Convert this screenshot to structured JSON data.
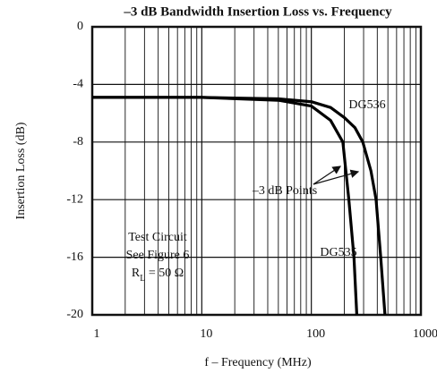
{
  "chart_data": {
    "type": "line",
    "title": "–3 dB Bandwidth Insertion Loss vs. Frequency",
    "x_label": "f – Frequency (MHz)",
    "y_label": "Insertion Loss (dB)",
    "xscale": "log",
    "xlim": [
      1,
      1000
    ],
    "xticks": [
      1,
      10,
      100,
      1000
    ],
    "ylim": [
      -20,
      0
    ],
    "yticks": [
      0,
      -4,
      -8,
      -12,
      -16,
      -20
    ],
    "grid": true,
    "series": [
      {
        "name": "DG536",
        "color": "#000000",
        "x": [
          1,
          10,
          50,
          100,
          150,
          200,
          250,
          295,
          350,
          390,
          430,
          470
        ],
        "values": [
          -4.9,
          -4.9,
          -5.0,
          -5.2,
          -5.6,
          -6.3,
          -7.0,
          -8,
          -10,
          -12,
          -16,
          -20
        ]
      },
      {
        "name": "DG535",
        "color": "#000000",
        "x": [
          1,
          10,
          50,
          100,
          150,
          194,
          220,
          245,
          260
        ],
        "values": [
          -4.9,
          -4.9,
          -5.1,
          -5.5,
          -6.5,
          -8,
          -12,
          -16,
          -20
        ]
      }
    ],
    "annotations": [
      "–3 dB Points",
      "Test Circuit",
      "See Figure 6"
    ],
    "rl_label": {
      "base": "R",
      "subscript": "L",
      "rest": " = 50  Ω"
    }
  }
}
